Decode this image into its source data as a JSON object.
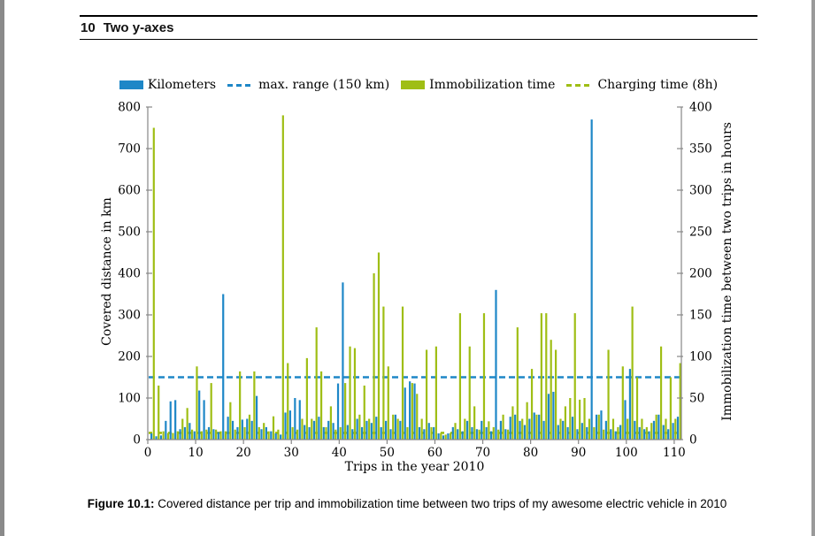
{
  "page": {
    "header": {
      "number": "10",
      "title": "Two y-axes"
    },
    "caption": {
      "label": "Figure 10.1:",
      "text": " Covered distance per trip and immobilization time between two trips of my awesome electric vehicle in 2010"
    }
  },
  "legend": {
    "items": [
      {
        "swatch": "box-blue",
        "label": "Kilometers"
      },
      {
        "swatch": "dash-blue",
        "label": "max. range (150 km)"
      },
      {
        "swatch": "box-green",
        "label": "Immobilization time"
      },
      {
        "swatch": "dash-green",
        "label": "Charging time (8h)"
      }
    ]
  },
  "colors": {
    "blue": "#1e87c7",
    "green": "#9fbe15",
    "axis_gray": "#878787"
  },
  "chart_data": {
    "type": "bar",
    "title": "",
    "xlabel": "Trips in the year 2010",
    "ylabel_left": "Covered distance in km",
    "ylabel_right": "Immobilization time between two trips in hours",
    "legend_position": "top",
    "grid": false,
    "axes": {
      "x": {
        "min": 0,
        "max": 110,
        "step": 10,
        "plot_max": 111.5
      },
      "left": {
        "min": 0,
        "max": 800,
        "step": 100
      },
      "right": {
        "min": 0,
        "max": 400,
        "step": 50
      }
    },
    "trips_start": 1,
    "series": [
      {
        "name": "Kilometers",
        "axis": "left",
        "color": "#1e87c7",
        "values": [
          15,
          8,
          10,
          45,
          92,
          95,
          25,
          30,
          40,
          20,
          118,
          95,
          30,
          25,
          18,
          350,
          55,
          45,
          30,
          48,
          50,
          45,
          105,
          25,
          30,
          20,
          15,
          12,
          65,
          70,
          100,
          95,
          35,
          30,
          45,
          55,
          30,
          45,
          40,
          135,
          378,
          35,
          25,
          50,
          30,
          45,
          40,
          55,
          30,
          45,
          25,
          60,
          45,
          125,
          140,
          135,
          30,
          25,
          40,
          30,
          15,
          10,
          15,
          30,
          25,
          20,
          45,
          30,
          25,
          45,
          30,
          20,
          360,
          45,
          25,
          55,
          60,
          45,
          35,
          50,
          65,
          60,
          45,
          110,
          115,
          35,
          45,
          30,
          55,
          25,
          40,
          30,
          770,
          60,
          70,
          45,
          25,
          20,
          35,
          95,
          170,
          45,
          30,
          25,
          20,
          45,
          60,
          35,
          25,
          40,
          55
        ]
      },
      {
        "name": "Immobilization time",
        "axis": "right",
        "color": "#9fbe15",
        "values": [
          375,
          65,
          10,
          8,
          8,
          10,
          25,
          38,
          12,
          88,
          10,
          12,
          68,
          12,
          10,
          10,
          45,
          12,
          82,
          15,
          30,
          82,
          15,
          20,
          10,
          28,
          12,
          390,
          92,
          15,
          12,
          25,
          98,
          25,
          135,
          82,
          15,
          40,
          12,
          15,
          68,
          112,
          110,
          30,
          65,
          25,
          200,
          225,
          160,
          88,
          30,
          25,
          160,
          15,
          68,
          55,
          25,
          108,
          15,
          112,
          8,
          6,
          8,
          20,
          152,
          25,
          112,
          40,
          12,
          152,
          22,
          15,
          12,
          30,
          12,
          40,
          135,
          25,
          45,
          85,
          30,
          152,
          152,
          120,
          108,
          25,
          40,
          50,
          152,
          48,
          50,
          25,
          15,
          30,
          12,
          108,
          25,
          15,
          88,
          25,
          160,
          75,
          25,
          15,
          20,
          30,
          112,
          25,
          75,
          25,
          92
        ]
      }
    ],
    "reference_lines": [
      {
        "name": "max. range (150 km)",
        "axis": "left",
        "value": 150,
        "color": "#1e87c7",
        "style": "dashed"
      },
      {
        "name": "Charging time (8h)",
        "axis": "right",
        "value": 8,
        "color": "#9fbe15",
        "style": "dashed"
      }
    ]
  }
}
